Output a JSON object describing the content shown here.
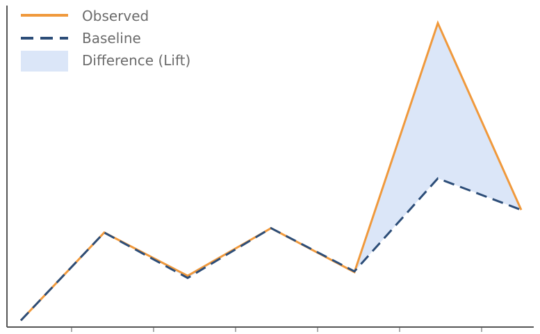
{
  "chart_data": {
    "type": "line",
    "x": [
      1,
      2,
      3,
      4,
      5,
      6,
      7
    ],
    "series": [
      {
        "name": "Observed",
        "values": [
          0,
          6.0,
          3.05,
          6.3,
          3.3,
          20.3,
          7.55
        ]
      },
      {
        "name": "Baseline",
        "values": [
          0,
          6.0,
          2.9,
          6.3,
          3.35,
          9.7,
          7.55
        ]
      }
    ],
    "fill_between": {
      "name": "Difference (Lift)",
      "upper": "Observed",
      "lower": "Baseline"
    },
    "ylim": [
      -0.45,
      21.5
    ],
    "xlim": [
      1,
      7
    ],
    "x_ticks": 7,
    "grid": false,
    "legend": "top-left",
    "colors": {
      "observed": "#f0993c",
      "baseline": "#2c4d78",
      "difference": "#dbe6f8",
      "axis": "#555555"
    }
  }
}
